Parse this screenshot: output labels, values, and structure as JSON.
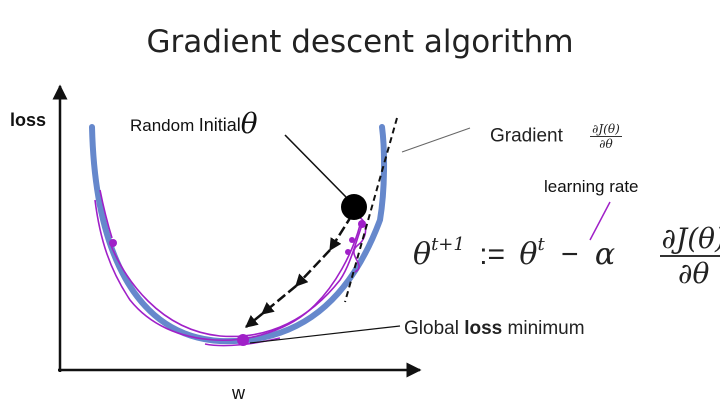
{
  "title": "Gradient descent algorithm",
  "axes": {
    "y_label": "loss",
    "x_label": "w"
  },
  "labels": {
    "random": "Random",
    "initial": "Initial",
    "theta": "θ",
    "gradient": "Gradient",
    "gradient_fraction": {
      "numerator": "∂J(θ)",
      "denominator": "∂θ"
    },
    "learning_rate": "learning rate",
    "global_prefix": "Global",
    "global_bold": "loss",
    "global_suffix": "minimum"
  },
  "formula": {
    "lhs": "θ",
    "lhs_sup": "t+1",
    "assign": ":=",
    "theta": "θ",
    "theta_sup": "t",
    "minus": "−",
    "alpha": "α",
    "fraction": {
      "numerator": "∂J(θ)",
      "denominator": "∂θ"
    }
  },
  "colors": {
    "curve": "#6688cc",
    "scribble": "#a020c8",
    "arrows": "#111111",
    "ball": "#000000",
    "axes": "#111111"
  }
}
